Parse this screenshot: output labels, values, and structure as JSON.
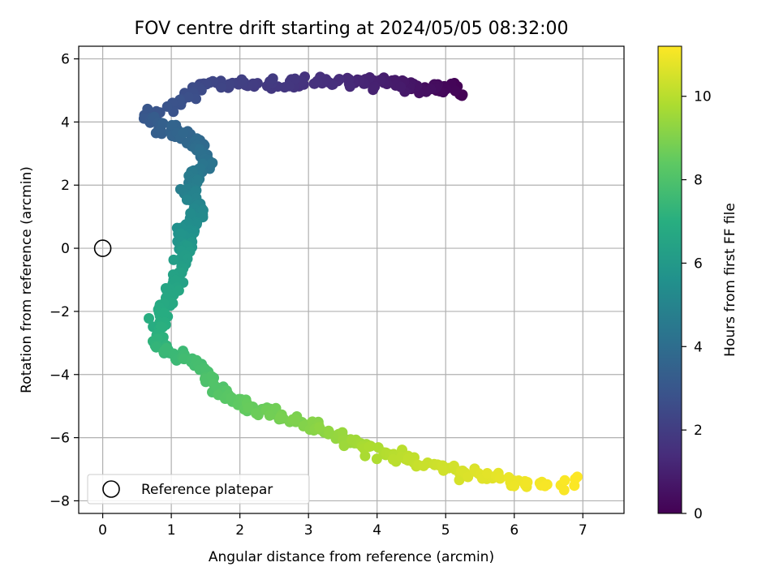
{
  "chart_data": {
    "type": "scatter",
    "title": "FOV centre drift starting at 2024/05/05 08:32:00",
    "xlabel": "Angular distance from reference (arcmin)",
    "ylabel": "Rotation from reference (arcmin)",
    "xlim": [
      -0.35,
      7.6
    ],
    "ylim": [
      -8.4,
      6.4
    ],
    "x_ticks": [
      0,
      1,
      2,
      3,
      4,
      5,
      6,
      7
    ],
    "y_ticks": [
      -8,
      -6,
      -4,
      -2,
      0,
      2,
      4,
      6
    ],
    "grid": true,
    "colormap": "viridis",
    "colorbar": {
      "label": "Hours from first FF file",
      "range": [
        0,
        11.2
      ],
      "ticks": [
        0,
        2,
        4,
        6,
        8,
        10
      ]
    },
    "reference_point": {
      "x": 0,
      "y": 0
    },
    "legend": {
      "position": "lower-left",
      "entries": [
        "Reference platepar"
      ]
    },
    "path": [
      {
        "x": 5.3,
        "y": 5.0,
        "t": 0.0
      },
      {
        "x": 4.8,
        "y": 5.05,
        "t": 0.35
      },
      {
        "x": 4.4,
        "y": 5.15,
        "t": 0.7
      },
      {
        "x": 4.0,
        "y": 5.25,
        "t": 1.0
      },
      {
        "x": 3.5,
        "y": 5.25,
        "t": 1.3
      },
      {
        "x": 3.0,
        "y": 5.25,
        "t": 1.6
      },
      {
        "x": 2.4,
        "y": 5.2,
        "t": 1.9
      },
      {
        "x": 2.0,
        "y": 5.2,
        "t": 2.1
      },
      {
        "x": 1.5,
        "y": 5.2,
        "t": 2.4
      },
      {
        "x": 1.1,
        "y": 4.6,
        "t": 2.8
      },
      {
        "x": 0.65,
        "y": 4.1,
        "t": 3.0
      },
      {
        "x": 0.9,
        "y": 3.8,
        "t": 3.4
      },
      {
        "x": 1.35,
        "y": 3.4,
        "t": 3.8
      },
      {
        "x": 1.5,
        "y": 2.7,
        "t": 4.2
      },
      {
        "x": 1.25,
        "y": 2.0,
        "t": 4.7
      },
      {
        "x": 1.4,
        "y": 1.3,
        "t": 5.1
      },
      {
        "x": 1.2,
        "y": 0.5,
        "t": 5.6
      },
      {
        "x": 1.2,
        "y": -0.3,
        "t": 6.1
      },
      {
        "x": 1.05,
        "y": -1.2,
        "t": 6.5
      },
      {
        "x": 0.8,
        "y": -2.2,
        "t": 6.9
      },
      {
        "x": 0.8,
        "y": -3.2,
        "t": 7.3
      },
      {
        "x": 1.3,
        "y": -3.6,
        "t": 7.7
      },
      {
        "x": 1.6,
        "y": -4.2,
        "t": 8.0
      },
      {
        "x": 1.85,
        "y": -4.8,
        "t": 8.3
      },
      {
        "x": 2.3,
        "y": -5.1,
        "t": 8.6
      },
      {
        "x": 2.9,
        "y": -5.5,
        "t": 9.0
      },
      {
        "x": 3.5,
        "y": -6.0,
        "t": 9.4
      },
      {
        "x": 4.0,
        "y": -6.4,
        "t": 9.8
      },
      {
        "x": 4.6,
        "y": -6.8,
        "t": 10.2
      },
      {
        "x": 5.2,
        "y": -7.1,
        "t": 10.5
      },
      {
        "x": 5.8,
        "y": -7.35,
        "t": 10.8
      },
      {
        "x": 6.3,
        "y": -7.45,
        "t": 11.0
      },
      {
        "x": 6.55,
        "y": -7.55,
        "t": 11.1
      },
      {
        "x": 7.0,
        "y": -7.25,
        "t": 11.2
      }
    ],
    "approx_point_count": 600
  }
}
